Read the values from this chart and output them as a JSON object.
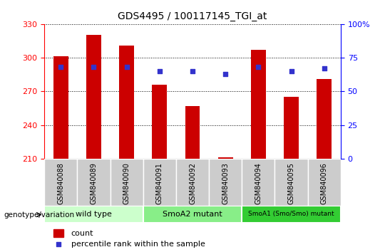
{
  "title": "GDS4495 / 100117145_TGI_at",
  "samples": [
    "GSM840088",
    "GSM840089",
    "GSM840090",
    "GSM840091",
    "GSM840092",
    "GSM840093",
    "GSM840094",
    "GSM840095",
    "GSM840096"
  ],
  "counts": [
    301,
    320,
    311,
    276,
    257,
    211,
    307,
    265,
    281
  ],
  "percentiles": [
    68,
    68,
    68,
    65,
    65,
    63,
    68,
    65,
    67
  ],
  "ylim": [
    210,
    330
  ],
  "yticks": [
    210,
    240,
    270,
    300,
    330
  ],
  "y2lim": [
    0,
    100
  ],
  "y2ticks": [
    0,
    25,
    50,
    75,
    100
  ],
  "bar_color": "#cc0000",
  "dot_color": "#3333cc",
  "groups": [
    {
      "label": "wild type",
      "samples": [
        0,
        1,
        2
      ],
      "color": "#ccffcc"
    },
    {
      "label": "SmoA2 mutant",
      "samples": [
        3,
        4,
        5
      ],
      "color": "#88ee88"
    },
    {
      "label": "SmoA1 (Smo/Smo) mutant",
      "samples": [
        6,
        7,
        8
      ],
      "color": "#33cc33"
    }
  ],
  "xlabel_group": "genotype/variation",
  "legend_count_label": "count",
  "legend_pct_label": "percentile rank within the sample",
  "tick_bg": "#cccccc",
  "bar_width": 0.45,
  "figsize": [
    5.4,
    3.54
  ],
  "dpi": 100
}
